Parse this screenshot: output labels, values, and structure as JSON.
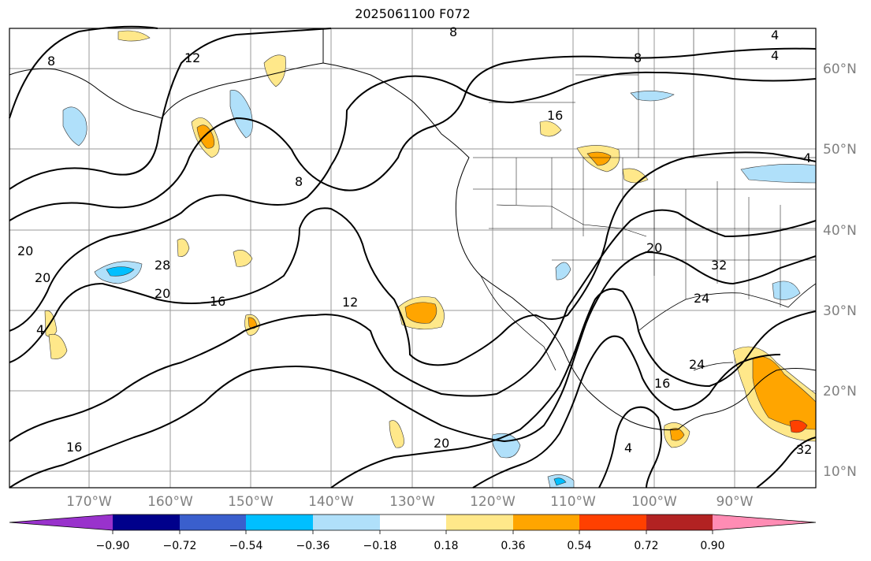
{
  "title": "2025061100 F072",
  "map": {
    "lon_range": [
      -180,
      -78
    ],
    "lat_range": [
      8,
      64
    ],
    "lon_labels": [
      "170°W",
      "160°W",
      "150°W",
      "140°W",
      "130°W",
      "120°W",
      "110°W",
      "100°W",
      "90°W"
    ],
    "lat_labels": [
      "60°N",
      "50°N",
      "40°N",
      "30°N",
      "20°N",
      "10°N"
    ],
    "contour_labels": [
      "4",
      "4",
      "4",
      "8",
      "8",
      "8",
      "8",
      "12",
      "12",
      "16",
      "16",
      "16",
      "20",
      "20",
      "20",
      "20",
      "20",
      "24",
      "24",
      "28",
      "32",
      "32",
      "16",
      "4",
      "4"
    ],
    "grid": true
  },
  "colorbar": {
    "ticks": [
      "−0.90",
      "−0.72",
      "−0.54",
      "−0.36",
      "−0.18",
      "0.18",
      "0.36",
      "0.54",
      "0.72",
      "0.90"
    ],
    "colors": [
      "#9932cc",
      "#00008b",
      "#3a5fcd",
      "#00bfff",
      "#b0e0fa",
      "#ffffff",
      "#ffe88a",
      "#ffa500",
      "#ff4000",
      "#b22222",
      "#ff8cb4"
    ],
    "extend": "both"
  }
}
